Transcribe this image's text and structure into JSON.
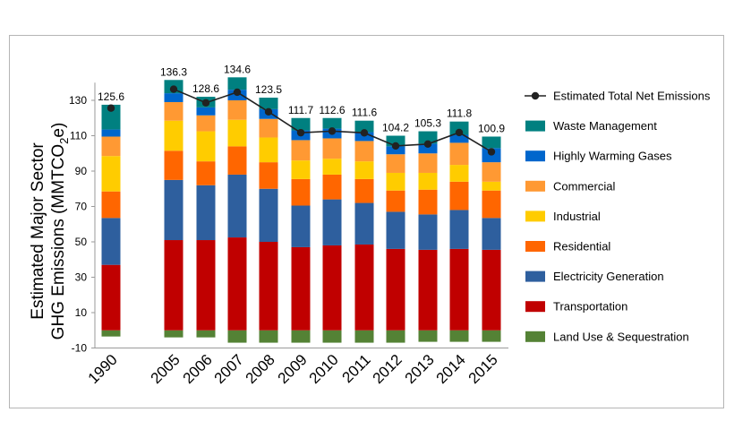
{
  "chart_data": {
    "type": "bar",
    "stacked": true,
    "categories": [
      "1990",
      "2005",
      "2006",
      "2007",
      "2008",
      "2009",
      "2010",
      "2011",
      "2012",
      "2013",
      "2014",
      "2015"
    ],
    "ylabel_line1": "Estimated Major Sector",
    "ylabel_line2_prefix": "GHG Emissions (MMTCO",
    "ylabel_line2_sub": "2",
    "ylabel_line2_suffix": "e)",
    "ylim": [
      -10,
      140
    ],
    "yticks": [
      "-10",
      "10",
      "30",
      "50",
      "70",
      "90",
      "110",
      "130"
    ],
    "ytick_values": [
      -10,
      10,
      30,
      50,
      70,
      90,
      110,
      130
    ],
    "grid": false,
    "legend_position": "right",
    "series": [
      {
        "name": "Land Use & Sequestration",
        "color": "#548235",
        "values": [
          -3.5,
          -4,
          -4,
          -7,
          -7,
          -7,
          -7,
          -7,
          -7,
          -6.5,
          -6.5,
          -6.5
        ]
      },
      {
        "name": "Transportation",
        "color": "#c00000",
        "values": [
          37,
          51,
          51,
          52.5,
          50,
          47,
          48,
          48.5,
          46,
          45.5,
          46,
          45.5
        ]
      },
      {
        "name": "Electricity Generation",
        "color": "#2e5f9e",
        "values": [
          26.5,
          34,
          31,
          35.5,
          30,
          23.5,
          26,
          23.5,
          21,
          20,
          22,
          18
        ]
      },
      {
        "name": "Residential",
        "color": "#ff6600",
        "values": [
          15,
          16.5,
          13.5,
          16,
          15,
          15,
          14,
          13.5,
          12,
          14,
          16,
          15.5
        ]
      },
      {
        "name": "Industrial",
        "color": "#ffcc00",
        "values": [
          20,
          17,
          17,
          15,
          14,
          10.5,
          9,
          10,
          10,
          9.5,
          9.5,
          5
        ]
      },
      {
        "name": "Commercial",
        "color": "#ff9933",
        "values": [
          11,
          10.5,
          9,
          11,
          10.5,
          11.5,
          11.5,
          11.5,
          10.5,
          11,
          12.5,
          11
        ]
      },
      {
        "name": "Highly Warming Gases",
        "color": "#0066cc",
        "values": [
          4,
          5,
          4.5,
          6,
          5.5,
          5.5,
          5.5,
          5,
          4.5,
          5.5,
          4.5,
          8
        ]
      },
      {
        "name": "Waste Management",
        "color": "#008080",
        "values": [
          14,
          7.5,
          6,
          7,
          6.5,
          7,
          6,
          6.5,
          6,
          7,
          7.5,
          6.5
        ]
      }
    ],
    "line_series": {
      "name": "Estimated Total Net Emissions",
      "color": "#222222",
      "values": [
        125.6,
        136.3,
        128.6,
        134.6,
        123.5,
        111.7,
        112.6,
        111.6,
        104.2,
        105.3,
        111.8,
        100.9
      ],
      "labels": [
        "125.6",
        "136.3",
        "128.6",
        "134.6",
        "123.5",
        "111.7",
        "112.6",
        "111.6",
        "104.2",
        "105.3",
        "111.8",
        "100.9"
      ]
    },
    "legend": [
      "Estimated Total Net Emissions",
      "Waste Management",
      "Highly Warming Gases",
      "Commercial",
      "Industrial",
      "Residential",
      "Electricity Generation",
      "Transportation",
      "Land Use & Sequestration"
    ]
  }
}
